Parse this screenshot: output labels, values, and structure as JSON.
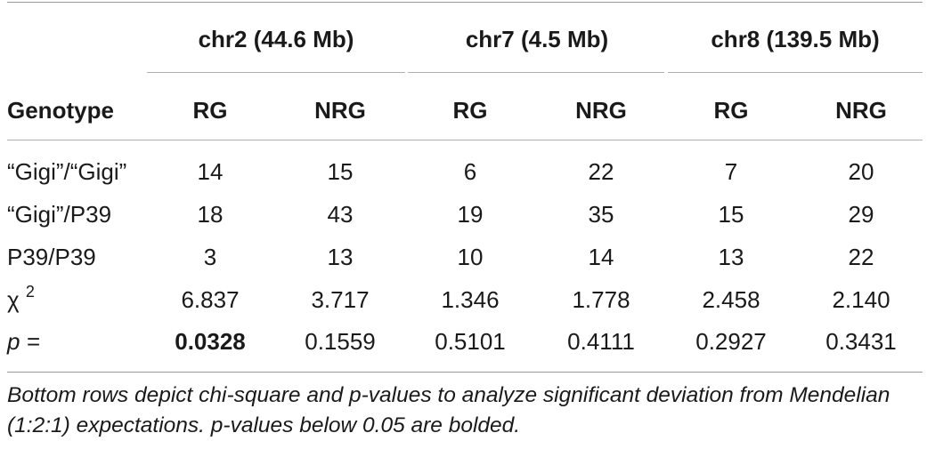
{
  "groups": [
    "chr2 (44.6 Mb)",
    "chr7 (4.5 Mb)",
    "chr8 (139.5 Mb)"
  ],
  "header": {
    "genotype": "Genotype",
    "cols": [
      "RG",
      "NRG",
      "RG",
      "NRG",
      "RG",
      "NRG"
    ]
  },
  "rows": [
    {
      "label": "“Gigi”/“Gigi”",
      "values": [
        "14",
        "15",
        "6",
        "22",
        "7",
        "20"
      ]
    },
    {
      "label": "“Gigi”/P39",
      "values": [
        "18",
        "43",
        "19",
        "35",
        "15",
        "29"
      ]
    },
    {
      "label": "P39/P39",
      "values": [
        "3",
        "13",
        "10",
        "14",
        "13",
        "22"
      ]
    }
  ],
  "chi": {
    "symbol": "χ",
    "sup": "2",
    "values": [
      "6.837",
      "3.717",
      "1.346",
      "1.778",
      "2.458",
      "2.140"
    ]
  },
  "p": {
    "label": "p =",
    "values": [
      "0.0328",
      "0.1559",
      "0.5101",
      "0.4111",
      "0.2927",
      "0.3431"
    ]
  },
  "footnote": "Bottom rows depict chi-square and p-values to analyze significant deviation from Mendelian (1:2:1) expectations. p-values below 0.05 are bolded."
}
